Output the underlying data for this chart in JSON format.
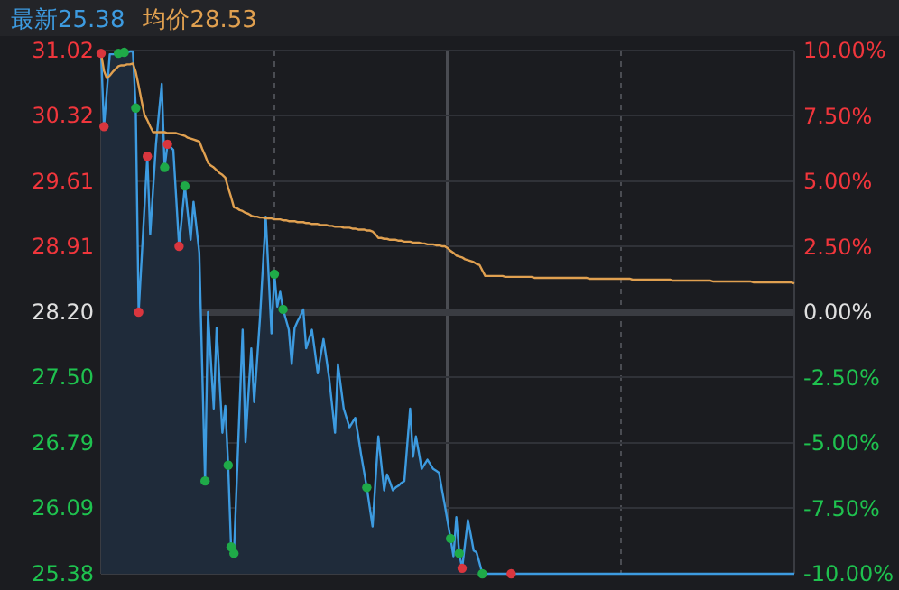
{
  "chart_data": {
    "type": "line",
    "categories": [
      null,
      null,
      null,
      null,
      null,
      null,
      null,
      null,
      null,
      null,
      null,
      null,
      null,
      null,
      null,
      null,
      null,
      null,
      null,
      null,
      null,
      null,
      null,
      null,
      null,
      null,
      null,
      null,
      null,
      null,
      null,
      null,
      null,
      null,
      null,
      null,
      null,
      null,
      null,
      null,
      null,
      null,
      null,
      null,
      null,
      null,
      null,
      null,
      null,
      null,
      null,
      null,
      null,
      null,
      null,
      null,
      null,
      null,
      null,
      null,
      null,
      null,
      null,
      null,
      null,
      null,
      null,
      null,
      null,
      null,
      null,
      null,
      null,
      null,
      null,
      null,
      null,
      null,
      null,
      null,
      null,
      null,
      null,
      null,
      null,
      null,
      null,
      null,
      null,
      null,
      null,
      null,
      null,
      null,
      null,
      null,
      null,
      null,
      null,
      null,
      null,
      null,
      null,
      null,
      null,
      null,
      null,
      null,
      null,
      null,
      null,
      null,
      null,
      null,
      null,
      null,
      null,
      null,
      null,
      null,
      null,
      null,
      null,
      null,
      null,
      null,
      null,
      null,
      null,
      null,
      null,
      null,
      null,
      null,
      null,
      null,
      null,
      null,
      null,
      null,
      null,
      null,
      null,
      null,
      null,
      null,
      null,
      null,
      null,
      null,
      null,
      null,
      null,
      null,
      null,
      null,
      null,
      null,
      null,
      null,
      null,
      null,
      null,
      null,
      null,
      null,
      null,
      null,
      null,
      null,
      null,
      null,
      null,
      null,
      null,
      null,
      null,
      null,
      null,
      null,
      null,
      null,
      null,
      null,
      null,
      null,
      null,
      null,
      null,
      null,
      null,
      null,
      null,
      null,
      null,
      null,
      null,
      null,
      null,
      null,
      null,
      null,
      null,
      null,
      null,
      null,
      null,
      null,
      null,
      null,
      null,
      null,
      null,
      null,
      null,
      null,
      null,
      null,
      null,
      null,
      null,
      null,
      null,
      null,
      null,
      null,
      null,
      null,
      null,
      null,
      null,
      null,
      null,
      null,
      null,
      null,
      null,
      null,
      null,
      null,
      null
    ],
    "ylim": [
      25.38,
      31.02
    ],
    "yticks": [
      {
        "value": 31.02,
        "label": "31.02"
      },
      {
        "value": 30.32,
        "label": "30.32"
      },
      {
        "value": 29.61,
        "label": "29.61"
      },
      {
        "value": 28.91,
        "label": "28.91"
      },
      {
        "value": 28.2,
        "label": "28.20"
      },
      {
        "value": 27.5,
        "label": "27.50"
      },
      {
        "value": 26.79,
        "label": "26.79"
      },
      {
        "value": 26.09,
        "label": "26.09"
      },
      {
        "value": 25.38,
        "label": "25.38"
      }
    ],
    "y2lim": [
      -10,
      10
    ],
    "y2ticks": [
      {
        "value": 10,
        "label": "10.00%"
      },
      {
        "value": 7.5,
        "label": "7.50%"
      },
      {
        "value": 5,
        "label": "5.00%"
      },
      {
        "value": 2.5,
        "label": "2.50%"
      },
      {
        "value": 0,
        "label": "0.00%"
      },
      {
        "value": -2.5,
        "label": "-2.50%"
      },
      {
        "value": -5,
        "label": "-5.00%"
      },
      {
        "value": -7.5,
        "label": "-7.50%"
      },
      {
        "value": -10,
        "label": "-10.00%"
      }
    ],
    "grid": true,
    "ref_lines": [
      {
        "axis": "y",
        "value": 28.2,
        "color": "#3a3c42",
        "line_style": "solid"
      }
    ],
    "series": [
      {
        "name": "最新25.38",
        "type": "area",
        "color": "#3d9be0",
        "values": [
          30.99,
          30.2,
          30.59,
          30.98,
          30.98,
          30.98,
          30.99,
          30.99,
          31.0,
          31.0,
          31.01,
          31.01,
          30.4,
          28.2,
          28.76,
          29.32,
          29.88,
          29.04,
          29.53,
          30.01,
          30.34,
          30.66,
          29.76,
          30.01,
          29.98,
          29.95,
          29.43,
          28.91,
          29.24,
          29.56,
          29.27,
          28.98,
          29.39,
          29.12,
          28.84,
          27.61,
          26.38,
          28.2,
          27.68,
          27.16,
          28.03,
          27.47,
          26.9,
          27.19,
          26.55,
          25.67,
          25.6,
          26.4,
          27.21,
          28.01,
          26.8,
          27.31,
          27.81,
          27.23,
          27.68,
          28.13,
          28.68,
          29.23,
          28.6,
          27.97,
          28.61,
          28.26,
          28.42,
          28.23,
          28.12,
          28.01,
          27.64,
          28.03,
          28.1,
          28.16,
          28.23,
          27.81,
          27.91,
          28.01,
          27.78,
          27.54,
          27.73,
          27.91,
          27.7,
          27.48,
          27.19,
          26.9,
          27.64,
          27.4,
          27.16,
          27.06,
          26.96,
          27.01,
          27.06,
          26.87,
          26.67,
          26.49,
          26.31,
          26.1,
          25.89,
          26.38,
          26.86,
          26.57,
          26.28,
          26.45,
          26.37,
          26.28,
          26.31,
          26.33,
          26.36,
          26.38,
          26.77,
          27.16,
          26.64,
          26.86,
          26.69,
          26.51,
          26.56,
          26.61,
          26.56,
          26.51,
          26.49,
          26.47,
          26.29,
          26.12,
          25.94,
          25.76,
          25.57,
          25.99,
          25.6,
          25.44,
          25.7,
          25.96,
          25.8,
          25.63,
          25.61,
          25.5,
          25.38,
          25.38,
          25.38,
          25.38,
          25.38,
          25.38,
          25.38,
          25.38,
          25.38,
          25.38,
          25.38,
          25.38,
          25.38,
          25.38,
          25.38,
          25.38,
          25.38,
          25.38,
          25.38,
          25.38,
          25.38,
          25.38,
          25.38,
          25.38,
          25.38,
          25.38,
          25.38,
          25.38,
          25.38,
          25.38,
          25.38,
          25.38,
          25.38,
          25.38,
          25.38,
          25.38,
          25.38,
          25.38,
          25.38,
          25.38,
          25.38,
          25.38,
          25.38,
          25.38,
          25.38,
          25.38,
          25.38,
          25.38,
          25.38,
          25.38,
          25.38,
          25.38,
          25.38,
          25.38,
          25.38,
          25.38,
          25.38,
          25.38,
          25.38,
          25.38,
          25.38,
          25.38,
          25.38,
          25.38,
          25.38,
          25.38,
          25.38,
          25.38,
          25.38,
          25.38,
          25.38,
          25.38,
          25.38,
          25.38,
          25.38,
          25.38,
          25.38,
          25.38,
          25.38,
          25.38,
          25.38,
          25.38,
          25.38,
          25.38,
          25.38,
          25.38,
          25.38,
          25.38,
          25.38,
          25.38,
          25.38,
          25.38,
          25.38,
          25.38,
          25.38,
          25.38,
          25.38,
          25.38,
          25.38,
          25.38,
          25.38,
          25.38,
          25.38,
          25.38,
          25.38,
          25.38,
          25.38,
          25.38,
          25.38
        ]
      },
      {
        "name": "均价28.53",
        "color": "#e0a050",
        "values": [
          30.99,
          30.8,
          30.72,
          30.75,
          30.79,
          30.82,
          30.85,
          30.86,
          30.86,
          30.87,
          30.87,
          30.88,
          30.79,
          30.64,
          30.48,
          30.33,
          30.27,
          30.2,
          30.14,
          30.14,
          30.14,
          30.14,
          30.14,
          30.13,
          30.13,
          30.13,
          30.13,
          30.12,
          30.11,
          30.1,
          30.08,
          30.07,
          30.06,
          30.05,
          30.04,
          29.96,
          29.89,
          29.81,
          29.78,
          29.76,
          29.73,
          29.7,
          29.68,
          29.65,
          29.54,
          29.44,
          29.33,
          29.32,
          29.3,
          29.29,
          29.27,
          29.26,
          29.24,
          29.23,
          29.23,
          29.22,
          29.22,
          29.21,
          29.21,
          29.21,
          29.2,
          29.2,
          29.2,
          29.19,
          29.19,
          29.18,
          29.18,
          29.18,
          29.17,
          29.17,
          29.17,
          29.16,
          29.16,
          29.15,
          29.15,
          29.15,
          29.14,
          29.14,
          29.14,
          29.13,
          29.13,
          29.12,
          29.12,
          29.12,
          29.11,
          29.11,
          29.11,
          29.1,
          29.1,
          29.09,
          29.09,
          29.09,
          29.08,
          29.08,
          29.07,
          29.04,
          29.0,
          29.0,
          28.99,
          28.99,
          28.98,
          28.98,
          28.98,
          28.97,
          28.97,
          28.96,
          28.96,
          28.96,
          28.95,
          28.95,
          28.95,
          28.94,
          28.94,
          28.93,
          28.93,
          28.93,
          28.92,
          28.92,
          28.91,
          28.91,
          28.89,
          28.86,
          28.84,
          28.81,
          28.8,
          28.79,
          28.77,
          28.76,
          28.75,
          28.74,
          28.72,
          28.71,
          28.65,
          28.59,
          28.59,
          28.59,
          28.59,
          28.59,
          28.59,
          28.59,
          28.58,
          28.58,
          28.58,
          28.58,
          28.58,
          28.58,
          28.58,
          28.58,
          28.58,
          28.58,
          28.57,
          28.57,
          28.57,
          28.57,
          28.57,
          28.57,
          28.57,
          28.57,
          28.57,
          28.57,
          28.57,
          28.57,
          28.57,
          28.57,
          28.57,
          28.57,
          28.57,
          28.57,
          28.57,
          28.56,
          28.56,
          28.56,
          28.56,
          28.56,
          28.56,
          28.56,
          28.56,
          28.56,
          28.56,
          28.56,
          28.56,
          28.56,
          28.56,
          28.56,
          28.55,
          28.55,
          28.55,
          28.55,
          28.55,
          28.55,
          28.55,
          28.55,
          28.55,
          28.55,
          28.55,
          28.55,
          28.55,
          28.55,
          28.54,
          28.54,
          28.54,
          28.54,
          28.54,
          28.54,
          28.54,
          28.54,
          28.54,
          28.54,
          28.54,
          28.54,
          28.54,
          28.54,
          28.53,
          28.53,
          28.53,
          28.53,
          28.53,
          28.53,
          28.53,
          28.53,
          28.53,
          28.53,
          28.53,
          28.53,
          28.53,
          28.53,
          28.52,
          28.52,
          28.52,
          28.52,
          28.52,
          28.52,
          28.52,
          28.52,
          28.52,
          28.52,
          28.52,
          28.52,
          28.52,
          28.52,
          28.51
        ]
      },
      {
        "type": "scatter",
        "marker": "circle",
        "color": "#d9363e",
        "values": [
          30.99,
          30.2,
          null,
          null,
          null,
          null,
          null,
          null,
          null,
          null,
          null,
          null,
          null,
          28.2,
          null,
          null,
          29.88,
          null,
          null,
          null,
          null,
          null,
          null,
          30.01,
          null,
          null,
          null,
          28.91,
          null,
          null,
          null,
          null,
          null,
          null,
          null,
          null,
          null,
          null,
          null,
          null,
          null,
          null,
          null,
          null,
          null,
          null,
          null,
          null,
          null,
          null,
          null,
          null,
          null,
          null,
          null,
          null,
          null,
          null,
          null,
          null,
          null,
          null,
          null,
          null,
          null,
          null,
          null,
          null,
          null,
          null,
          null,
          null,
          null,
          null,
          null,
          null,
          null,
          null,
          null,
          null,
          null,
          null,
          null,
          null,
          null,
          null,
          null,
          null,
          null,
          null,
          null,
          null,
          null,
          null,
          null,
          null,
          null,
          null,
          null,
          null,
          null,
          null,
          null,
          null,
          null,
          null,
          null,
          null,
          null,
          null,
          null,
          null,
          null,
          null,
          null,
          null,
          null,
          null,
          null,
          null,
          null,
          null,
          null,
          null,
          null,
          25.44,
          null,
          null,
          null,
          null,
          null,
          null,
          null,
          null,
          null,
          null,
          null,
          null,
          null,
          null,
          null,
          null,
          25.38,
          null,
          null,
          null,
          null,
          null,
          null,
          null,
          null,
          null,
          null,
          null,
          null,
          null,
          null,
          null,
          null,
          null,
          null,
          null,
          null,
          null,
          null,
          null,
          null,
          null,
          null,
          null,
          null,
          null,
          null,
          null,
          null,
          null,
          null,
          null,
          null,
          null,
          null,
          null,
          null,
          null,
          null,
          null,
          null,
          null,
          null,
          null,
          null,
          null,
          null,
          null,
          null,
          null,
          null,
          null,
          null,
          null,
          null,
          null,
          null,
          null,
          null,
          null,
          null,
          null,
          null,
          null,
          null,
          null,
          null,
          null,
          null,
          null,
          null,
          null,
          null,
          null,
          null,
          null,
          null,
          null,
          null,
          null,
          null,
          null,
          null,
          null,
          null,
          null,
          null,
          null,
          null,
          null,
          null,
          null,
          null,
          null,
          null
        ]
      },
      {
        "type": "scatter",
        "marker": "circle",
        "color": "#1faa48",
        "values": [
          null,
          null,
          null,
          null,
          null,
          null,
          30.99,
          null,
          31.0,
          null,
          null,
          null,
          30.4,
          null,
          null,
          null,
          null,
          null,
          null,
          null,
          null,
          null,
          29.76,
          null,
          null,
          null,
          null,
          null,
          null,
          29.56,
          null,
          null,
          null,
          null,
          null,
          null,
          26.38,
          null,
          null,
          null,
          null,
          null,
          null,
          null,
          26.55,
          25.67,
          25.6,
          null,
          null,
          null,
          null,
          null,
          null,
          null,
          null,
          null,
          null,
          null,
          null,
          null,
          28.61,
          null,
          null,
          28.23,
          null,
          null,
          null,
          null,
          null,
          null,
          null,
          null,
          null,
          null,
          null,
          null,
          null,
          null,
          null,
          null,
          null,
          null,
          null,
          null,
          null,
          null,
          null,
          null,
          null,
          null,
          null,
          null,
          26.31,
          null,
          null,
          null,
          null,
          null,
          null,
          null,
          null,
          null,
          null,
          null,
          null,
          null,
          null,
          null,
          null,
          null,
          null,
          null,
          null,
          null,
          null,
          null,
          null,
          null,
          null,
          null,
          null,
          25.76,
          null,
          null,
          25.6,
          null,
          null,
          null,
          null,
          null,
          null,
          null,
          25.38,
          null,
          null,
          null,
          null,
          null,
          null,
          null,
          null,
          null,
          null,
          null,
          null,
          null,
          null,
          null,
          null,
          null,
          null,
          null,
          null,
          null,
          null,
          null,
          null,
          null,
          null,
          null,
          null,
          null,
          null,
          null,
          null,
          null,
          null,
          null,
          null,
          null,
          null,
          null,
          null,
          null,
          null,
          null,
          null,
          null,
          null,
          null,
          null,
          null,
          null,
          null,
          null,
          null,
          null,
          null,
          null,
          null,
          null,
          null,
          null,
          null,
          null,
          null,
          null,
          null,
          null,
          null,
          null,
          null,
          null,
          null,
          null,
          null,
          null,
          null,
          null,
          null,
          null,
          null,
          null,
          null,
          null,
          null,
          null,
          null,
          null,
          null,
          null,
          null,
          null,
          null,
          null,
          null,
          null,
          null,
          null,
          null,
          null,
          null,
          null,
          null,
          null,
          null,
          null,
          null,
          null,
          null,
          null
        ]
      }
    ]
  }
}
